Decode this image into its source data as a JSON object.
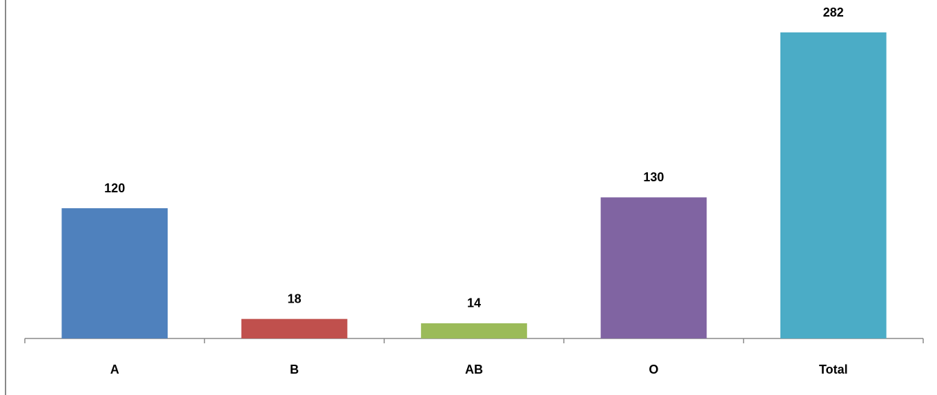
{
  "chart_data": {
    "type": "bar",
    "categories": [
      "A",
      "B",
      "AB",
      "O",
      "Total"
    ],
    "values": [
      120,
      18,
      14,
      130,
      282
    ],
    "colors": [
      "#4f81bd",
      "#c0504d",
      "#9bbb59",
      "#8064a2",
      "#4bacc6"
    ],
    "data_labels": true
  }
}
